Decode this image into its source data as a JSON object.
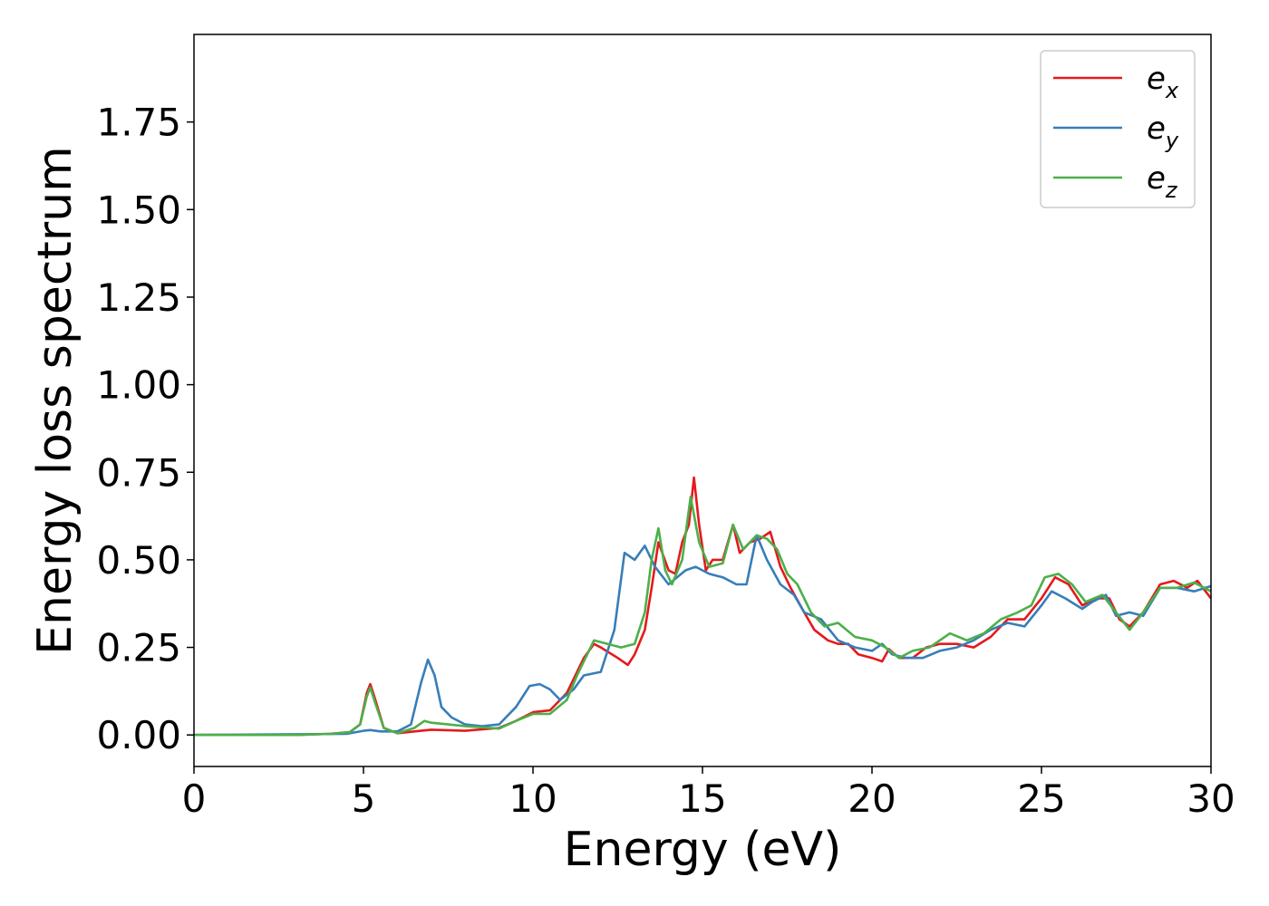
{
  "chart_data": {
    "type": "line",
    "xlabel": "Energy (eV)",
    "ylabel": "Energy loss spectrum",
    "xlim": [
      0,
      30
    ],
    "ylim": [
      -0.09,
      2.0
    ],
    "xticks": [
      0,
      5,
      10,
      15,
      20,
      25,
      30
    ],
    "xtick_labels": [
      "0",
      "5",
      "10",
      "15",
      "20",
      "25",
      "30"
    ],
    "yticks": [
      0,
      0.25,
      0.5,
      0.75,
      1.0,
      1.25,
      1.5,
      1.75
    ],
    "ytick_labels": [
      "0.00",
      "0.25",
      "0.50",
      "0.75",
      "1.00",
      "1.25",
      "1.50",
      "1.75"
    ],
    "grid": false,
    "legend_position": "top-right",
    "series": [
      {
        "name": "e",
        "subscript": "x",
        "color": "#e41a1c",
        "points": [
          [
            0,
            0.0
          ],
          [
            3,
            0.0
          ],
          [
            4,
            0.003
          ],
          [
            4.6,
            0.008
          ],
          [
            4.9,
            0.03
          ],
          [
            5.1,
            0.12
          ],
          [
            5.2,
            0.145
          ],
          [
            5.35,
            0.1
          ],
          [
            5.6,
            0.02
          ],
          [
            6.0,
            0.005
          ],
          [
            6.5,
            0.01
          ],
          [
            7.0,
            0.015
          ],
          [
            8.0,
            0.012
          ],
          [
            9.0,
            0.02
          ],
          [
            9.5,
            0.04
          ],
          [
            10,
            0.065
          ],
          [
            10.5,
            0.07
          ],
          [
            11,
            0.12
          ],
          [
            11.5,
            0.22
          ],
          [
            11.8,
            0.26
          ],
          [
            12,
            0.25
          ],
          [
            12.5,
            0.22
          ],
          [
            12.8,
            0.2
          ],
          [
            13,
            0.23
          ],
          [
            13.3,
            0.3
          ],
          [
            13.5,
            0.42
          ],
          [
            13.7,
            0.55
          ],
          [
            14.0,
            0.47
          ],
          [
            14.2,
            0.46
          ],
          [
            14.4,
            0.55
          ],
          [
            14.6,
            0.6
          ],
          [
            14.75,
            0.735
          ],
          [
            14.9,
            0.6
          ],
          [
            15.1,
            0.47
          ],
          [
            15.3,
            0.5
          ],
          [
            15.6,
            0.5
          ],
          [
            15.9,
            0.6
          ],
          [
            16.1,
            0.52
          ],
          [
            16.4,
            0.55
          ],
          [
            16.7,
            0.56
          ],
          [
            17.0,
            0.58
          ],
          [
            17.3,
            0.48
          ],
          [
            17.6,
            0.42
          ],
          [
            18.0,
            0.35
          ],
          [
            18.3,
            0.3
          ],
          [
            18.7,
            0.27
          ],
          [
            19.0,
            0.26
          ],
          [
            19.3,
            0.26
          ],
          [
            19.6,
            0.23
          ],
          [
            20,
            0.22
          ],
          [
            20.3,
            0.21
          ],
          [
            20.5,
            0.245
          ],
          [
            20.8,
            0.22
          ],
          [
            21.2,
            0.22
          ],
          [
            21.6,
            0.25
          ],
          [
            22,
            0.26
          ],
          [
            22.5,
            0.26
          ],
          [
            23,
            0.25
          ],
          [
            23.5,
            0.28
          ],
          [
            24,
            0.33
          ],
          [
            24.5,
            0.33
          ],
          [
            25,
            0.39
          ],
          [
            25.4,
            0.45
          ],
          [
            25.8,
            0.43
          ],
          [
            26.2,
            0.37
          ],
          [
            26.6,
            0.39
          ],
          [
            27.0,
            0.39
          ],
          [
            27.3,
            0.33
          ],
          [
            27.6,
            0.31
          ],
          [
            28.0,
            0.35
          ],
          [
            28.5,
            0.43
          ],
          [
            28.9,
            0.44
          ],
          [
            29.3,
            0.42
          ],
          [
            29.6,
            0.44
          ],
          [
            30,
            0.39
          ]
        ]
      },
      {
        "name": "e",
        "subscript": "y",
        "color": "#377eb8",
        "points": [
          [
            0,
            0.0
          ],
          [
            4.5,
            0.003
          ],
          [
            5.0,
            0.012
          ],
          [
            5.2,
            0.014
          ],
          [
            5.5,
            0.01
          ],
          [
            6.0,
            0.01
          ],
          [
            6.4,
            0.03
          ],
          [
            6.7,
            0.15
          ],
          [
            6.9,
            0.215
          ],
          [
            7.1,
            0.17
          ],
          [
            7.3,
            0.08
          ],
          [
            7.6,
            0.05
          ],
          [
            8.0,
            0.03
          ],
          [
            8.5,
            0.025
          ],
          [
            9.0,
            0.03
          ],
          [
            9.5,
            0.08
          ],
          [
            9.9,
            0.14
          ],
          [
            10.2,
            0.145
          ],
          [
            10.5,
            0.13
          ],
          [
            10.8,
            0.1
          ],
          [
            11.2,
            0.13
          ],
          [
            11.5,
            0.17
          ],
          [
            12,
            0.18
          ],
          [
            12.4,
            0.3
          ],
          [
            12.7,
            0.52
          ],
          [
            13.0,
            0.5
          ],
          [
            13.3,
            0.54
          ],
          [
            13.6,
            0.48
          ],
          [
            14.0,
            0.43
          ],
          [
            14.5,
            0.47
          ],
          [
            14.8,
            0.48
          ],
          [
            15.2,
            0.46
          ],
          [
            15.6,
            0.45
          ],
          [
            16.0,
            0.43
          ],
          [
            16.3,
            0.43
          ],
          [
            16.6,
            0.57
          ],
          [
            16.9,
            0.5
          ],
          [
            17.3,
            0.43
          ],
          [
            17.7,
            0.4
          ],
          [
            18.0,
            0.35
          ],
          [
            18.5,
            0.33
          ],
          [
            19.0,
            0.27
          ],
          [
            19.5,
            0.25
          ],
          [
            20,
            0.24
          ],
          [
            20.3,
            0.26
          ],
          [
            20.6,
            0.23
          ],
          [
            21.0,
            0.22
          ],
          [
            21.5,
            0.22
          ],
          [
            22,
            0.24
          ],
          [
            22.5,
            0.25
          ],
          [
            23,
            0.27
          ],
          [
            23.5,
            0.3
          ],
          [
            24,
            0.32
          ],
          [
            24.5,
            0.31
          ],
          [
            25,
            0.37
          ],
          [
            25.3,
            0.41
          ],
          [
            25.7,
            0.39
          ],
          [
            26.2,
            0.36
          ],
          [
            26.5,
            0.38
          ],
          [
            26.9,
            0.4
          ],
          [
            27.2,
            0.34
          ],
          [
            27.6,
            0.35
          ],
          [
            28.0,
            0.34
          ],
          [
            28.5,
            0.42
          ],
          [
            29.0,
            0.42
          ],
          [
            29.5,
            0.41
          ],
          [
            30,
            0.425
          ]
        ]
      },
      {
        "name": "e",
        "subscript": "z",
        "color": "#4daf4a",
        "points": [
          [
            0,
            0.0
          ],
          [
            3,
            0.0
          ],
          [
            4,
            0.003
          ],
          [
            4.6,
            0.008
          ],
          [
            4.9,
            0.03
          ],
          [
            5.1,
            0.11
          ],
          [
            5.2,
            0.135
          ],
          [
            5.35,
            0.09
          ],
          [
            5.6,
            0.02
          ],
          [
            6.0,
            0.005
          ],
          [
            6.5,
            0.02
          ],
          [
            6.8,
            0.04
          ],
          [
            7.0,
            0.035
          ],
          [
            7.5,
            0.03
          ],
          [
            8.0,
            0.025
          ],
          [
            9.0,
            0.018
          ],
          [
            9.5,
            0.04
          ],
          [
            10,
            0.06
          ],
          [
            10.5,
            0.06
          ],
          [
            11,
            0.1
          ],
          [
            11.3,
            0.17
          ],
          [
            11.8,
            0.27
          ],
          [
            12.2,
            0.26
          ],
          [
            12.6,
            0.25
          ],
          [
            13.0,
            0.26
          ],
          [
            13.3,
            0.35
          ],
          [
            13.5,
            0.5
          ],
          [
            13.7,
            0.59
          ],
          [
            13.9,
            0.47
          ],
          [
            14.1,
            0.43
          ],
          [
            14.4,
            0.5
          ],
          [
            14.65,
            0.68
          ],
          [
            14.9,
            0.55
          ],
          [
            15.2,
            0.48
          ],
          [
            15.6,
            0.49
          ],
          [
            15.9,
            0.6
          ],
          [
            16.2,
            0.53
          ],
          [
            16.6,
            0.57
          ],
          [
            16.9,
            0.56
          ],
          [
            17.2,
            0.53
          ],
          [
            17.5,
            0.46
          ],
          [
            17.8,
            0.43
          ],
          [
            18.2,
            0.35
          ],
          [
            18.6,
            0.31
          ],
          [
            19.0,
            0.32
          ],
          [
            19.5,
            0.28
          ],
          [
            20,
            0.27
          ],
          [
            20.4,
            0.25
          ],
          [
            20.8,
            0.22
          ],
          [
            21.2,
            0.24
          ],
          [
            21.7,
            0.25
          ],
          [
            22.3,
            0.29
          ],
          [
            22.8,
            0.27
          ],
          [
            23.3,
            0.29
          ],
          [
            23.8,
            0.33
          ],
          [
            24.3,
            0.35
          ],
          [
            24.7,
            0.37
          ],
          [
            25.1,
            0.45
          ],
          [
            25.5,
            0.46
          ],
          [
            25.9,
            0.43
          ],
          [
            26.3,
            0.38
          ],
          [
            26.8,
            0.4
          ],
          [
            27.2,
            0.35
          ],
          [
            27.6,
            0.3
          ],
          [
            28.0,
            0.35
          ],
          [
            28.5,
            0.42
          ],
          [
            29.0,
            0.42
          ],
          [
            29.5,
            0.435
          ],
          [
            30,
            0.41
          ]
        ]
      }
    ]
  }
}
